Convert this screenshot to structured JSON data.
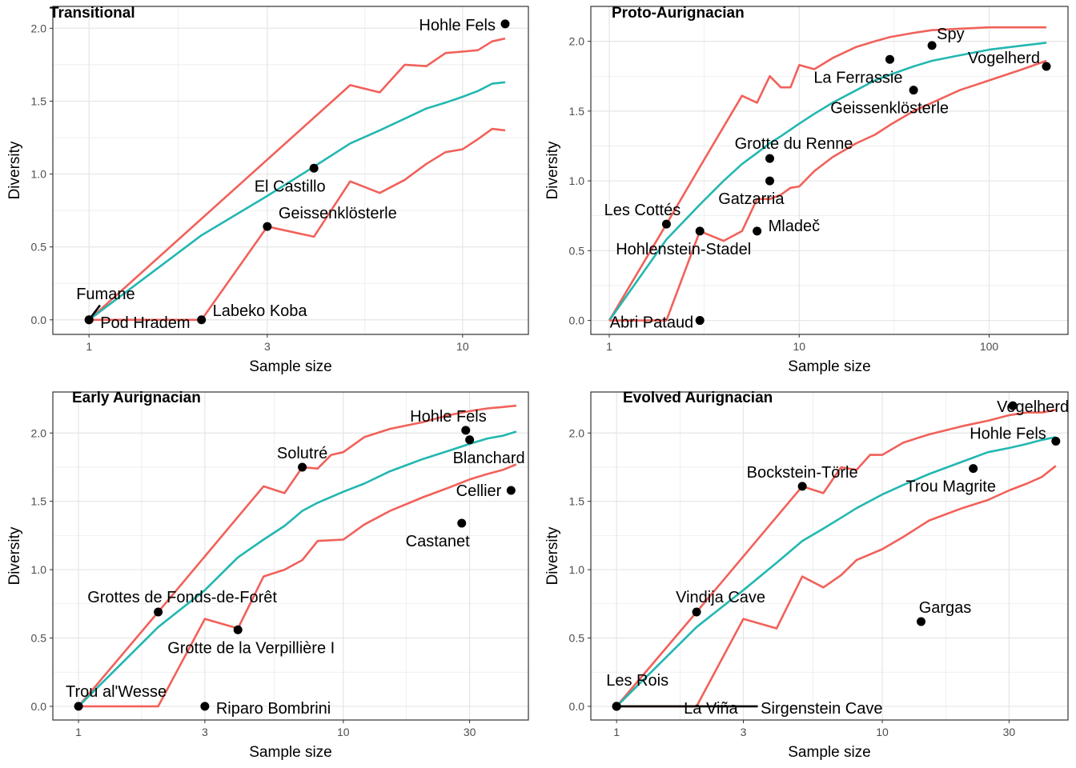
{
  "colors": {
    "bounds": "#F1615A",
    "mean": "#23B7B1",
    "points": "#000000",
    "grid": "#e5e5e5",
    "frame": "#333333"
  },
  "chart_data": [
    {
      "type": "line",
      "title": "Transitional",
      "xlabel": "Sample size",
      "ylabel": "Diversity",
      "x_scale": "log10",
      "xlim": [
        0.8,
        15
      ],
      "ylim": [
        -0.1,
        2.15
      ],
      "xticks": [
        1,
        3,
        10
      ],
      "xtick_labels": [
        "1",
        "3",
        "10"
      ],
      "yticks": [
        0,
        0.5,
        1,
        1.5,
        2
      ],
      "ytick_labels": [
        "0.0",
        "0.5",
        "1.0",
        "1.5",
        "2.0"
      ],
      "grid": true,
      "series": [
        {
          "role": "upper",
          "x": [
            1,
            5,
            6,
            7,
            8,
            9,
            10,
            11,
            12,
            13
          ],
          "y": [
            0,
            1.61,
            1.56,
            1.75,
            1.74,
            1.83,
            1.84,
            1.85,
            1.91,
            1.93
          ]
        },
        {
          "role": "mean",
          "x": [
            1,
            2,
            3,
            4,
            5,
            6,
            7,
            8,
            9,
            10,
            11,
            12,
            13
          ],
          "y": [
            0,
            0.58,
            0.85,
            1.05,
            1.21,
            1.3,
            1.38,
            1.45,
            1.49,
            1.53,
            1.57,
            1.62,
            1.63
          ]
        },
        {
          "role": "lower",
          "x": [
            1,
            2,
            3,
            4,
            5,
            6,
            7,
            8,
            9,
            10,
            11,
            12,
            13
          ],
          "y": [
            0,
            0,
            0.64,
            0.57,
            0.95,
            0.87,
            0.96,
            1.07,
            1.15,
            1.17,
            1.24,
            1.31,
            1.3
          ]
        }
      ],
      "points": [
        {
          "name": "Hohle Fels",
          "x": 13,
          "y": 2.03,
          "label_anchor": "end",
          "label_dx": -12,
          "label_dy": 8
        },
        {
          "name": "El Castillo",
          "x": 4,
          "y": 1.04,
          "label_anchor": "middle",
          "label_dx": -30,
          "label_dy": 29
        },
        {
          "name": "Geissenklösterle",
          "x": 3,
          "y": 0.64,
          "label_anchor": "start",
          "label_dx": 14,
          "label_dy": -10
        },
        {
          "name": "Fumane",
          "x": 1,
          "y": 0,
          "label_anchor": "start",
          "label_dx": -16,
          "label_dy": -26
        },
        {
          "name": "Pod Hradem",
          "x": 1,
          "y": 0,
          "label_anchor": "start",
          "label_dx": 14,
          "label_dy": 10
        },
        {
          "name": "Labeko Koba",
          "x": 2,
          "y": 0,
          "label_anchor": "start",
          "label_dx": 14,
          "label_dy": -5
        }
      ],
      "segments": [
        {
          "x1": 1,
          "y1": 0,
          "x2": 1.07,
          "y2": 0.1
        }
      ]
    },
    {
      "type": "line",
      "title": "Proto-Aurignacian",
      "xlabel": "Sample size",
      "ylabel": "Diversity",
      "x_scale": "log10",
      "xlim": [
        0.8,
        260
      ],
      "ylim": [
        -0.1,
        2.25
      ],
      "xticks": [
        1,
        10,
        100
      ],
      "xtick_labels": [
        "1",
        "10",
        "100"
      ],
      "yticks": [
        0,
        0.5,
        1,
        1.5,
        2
      ],
      "ytick_labels": [
        "0.0",
        "0.5",
        "1.0",
        "1.5",
        "2.0"
      ],
      "grid": true,
      "series": [
        {
          "role": "upper",
          "x": [
            1,
            2,
            3,
            5,
            6,
            7,
            8,
            9,
            10,
            12,
            15,
            20,
            25,
            30,
            40,
            50,
            70,
            100,
            150,
            200
          ],
          "y": [
            0,
            0.69,
            1.1,
            1.61,
            1.56,
            1.75,
            1.67,
            1.67,
            1.83,
            1.8,
            1.88,
            1.96,
            2.0,
            2.03,
            2.06,
            2.08,
            2.09,
            2.1,
            2.1,
            2.1
          ]
        },
        {
          "role": "mean",
          "x": [
            1,
            2,
            3,
            4,
            5,
            6,
            7,
            8,
            10,
            12,
            15,
            20,
            25,
            30,
            40,
            50,
            70,
            100,
            150,
            200
          ],
          "y": [
            0,
            0.58,
            0.83,
            1.0,
            1.12,
            1.2,
            1.27,
            1.32,
            1.41,
            1.48,
            1.56,
            1.65,
            1.72,
            1.76,
            1.82,
            1.86,
            1.9,
            1.94,
            1.97,
            1.99
          ]
        },
        {
          "role": "lower",
          "x": [
            1,
            2,
            3,
            4,
            5,
            6,
            7,
            8,
            9,
            10,
            12,
            15,
            20,
            25,
            30,
            40,
            50,
            70,
            100,
            150,
            200
          ],
          "y": [
            0,
            0,
            0.64,
            0.57,
            0.64,
            0.87,
            0.87,
            0.9,
            0.95,
            0.96,
            1.07,
            1.17,
            1.27,
            1.33,
            1.4,
            1.5,
            1.56,
            1.65,
            1.72,
            1.8,
            1.86
          ]
        }
      ],
      "points": [
        {
          "name": "Spy",
          "x": 50,
          "y": 1.97,
          "label_anchor": "start",
          "label_dx": 6,
          "label_dy": -8
        },
        {
          "name": "Vogelherd",
          "x": 200,
          "y": 1.82,
          "label_anchor": "end",
          "label_dx": -8,
          "label_dy": -4
        },
        {
          "name": "La Ferrassie",
          "x": 30,
          "y": 1.87,
          "label_anchor": "end",
          "label_dx": 16,
          "label_dy": 29
        },
        {
          "name": "Geissenklösterle",
          "x": 40,
          "y": 1.65,
          "label_anchor": "middle",
          "label_dx": -30,
          "label_dy": 29
        },
        {
          "name": "Grotte du Renne",
          "x": 7,
          "y": 1.16,
          "label_anchor": "middle",
          "label_dx": 30,
          "label_dy": -12
        },
        {
          "name": "Gatzarria",
          "x": 7,
          "y": 1.0,
          "label_anchor": "end",
          "label_dx": 18,
          "label_dy": 29
        },
        {
          "name": "Les Cottés",
          "x": 2,
          "y": 0.69,
          "label_anchor": "middle",
          "label_dx": -30,
          "label_dy": -11
        },
        {
          "name": "Mladeč",
          "x": 6,
          "y": 0.64,
          "label_anchor": "start",
          "label_dx": 14,
          "label_dy": 0
        },
        {
          "name": "Hohlenstein-Stadel",
          "x": 3,
          "y": 0.64,
          "label_anchor": "end",
          "label_dx": 64,
          "label_dy": 29
        },
        {
          "name": "Abri Pataud",
          "x": 3,
          "y": 0,
          "label_anchor": "end",
          "label_dx": -8,
          "label_dy": 9
        }
      ],
      "segments": []
    },
    {
      "type": "line",
      "title": "Early Aurignacian",
      "xlabel": "Sample size",
      "ylabel": "Diversity",
      "x_scale": "log10",
      "xlim": [
        0.8,
        50
      ],
      "ylim": [
        -0.1,
        2.3
      ],
      "xticks": [
        1,
        3,
        10,
        30
      ],
      "xtick_labels": [
        "1",
        "3",
        "10",
        "30"
      ],
      "yticks": [
        0,
        0.5,
        1,
        1.5,
        2
      ],
      "ytick_labels": [
        "0.0",
        "0.5",
        "1.0",
        "1.5",
        "2.0"
      ],
      "grid": true,
      "series": [
        {
          "role": "upper",
          "x": [
            1,
            2,
            5,
            6,
            7,
            8,
            9,
            10,
            12,
            15,
            20,
            25,
            30,
            35,
            40,
            45
          ],
          "y": [
            0,
            0.69,
            1.61,
            1.56,
            1.75,
            1.74,
            1.84,
            1.86,
            1.97,
            2.03,
            2.08,
            2.13,
            2.16,
            2.18,
            2.19,
            2.2
          ]
        },
        {
          "role": "mean",
          "x": [
            1,
            2,
            3,
            4,
            5,
            6,
            7,
            8,
            10,
            12,
            15,
            20,
            25,
            30,
            35,
            40,
            45
          ],
          "y": [
            0,
            0.58,
            0.85,
            1.09,
            1.22,
            1.32,
            1.43,
            1.49,
            1.57,
            1.63,
            1.72,
            1.81,
            1.87,
            1.92,
            1.96,
            1.98,
            2.01
          ]
        },
        {
          "role": "lower",
          "x": [
            1,
            2,
            3,
            4,
            5,
            6,
            7,
            8,
            10,
            12,
            15,
            20,
            25,
            30,
            35,
            40,
            45
          ],
          "y": [
            0,
            0,
            0.64,
            0.57,
            0.95,
            1.0,
            1.07,
            1.21,
            1.22,
            1.33,
            1.43,
            1.53,
            1.6,
            1.66,
            1.7,
            1.73,
            1.77
          ]
        }
      ],
      "points": [
        {
          "name": "Hohle Fels",
          "x": 29,
          "y": 2.02,
          "label_anchor": "end",
          "label_dx": 26,
          "label_dy": -11
        },
        {
          "name": "Solutré",
          "x": 7,
          "y": 1.75,
          "label_anchor": "middle",
          "label_dx": 0,
          "label_dy": -11
        },
        {
          "name": "Blanchard",
          "x": 30,
          "y": 1.95,
          "label_anchor": "middle",
          "label_dx": 24,
          "label_dy": 29
        },
        {
          "name": "Cellier",
          "x": 43,
          "y": 1.58,
          "label_anchor": "end",
          "label_dx": -12,
          "label_dy": 7
        },
        {
          "name": "Castanet",
          "x": 28,
          "y": 1.34,
          "label_anchor": "middle",
          "label_dx": -30,
          "label_dy": 29
        },
        {
          "name": "Grottes de Fonds-de-Forêt",
          "x": 2,
          "y": 0.69,
          "label_anchor": "middle",
          "label_dx": 30,
          "label_dy": -12
        },
        {
          "name": "Grotte de la Verpillière I",
          "x": 4,
          "y": 0.56,
          "label_anchor": "start",
          "label_dx": -88,
          "label_dy": 29
        },
        {
          "name": "Trou al'Wesse",
          "x": 1,
          "y": 0,
          "label_anchor": "start",
          "label_dx": -16,
          "label_dy": -12
        },
        {
          "name": "Riparo Bombrini",
          "x": 3,
          "y": 0,
          "label_anchor": "start",
          "label_dx": 14,
          "label_dy": 9
        }
      ],
      "segments": []
    },
    {
      "type": "line",
      "title": "Evolved Aurignacian",
      "xlabel": "Sample size",
      "ylabel": "Diversity",
      "x_scale": "log10",
      "xlim": [
        0.8,
        50
      ],
      "ylim": [
        -0.1,
        2.3
      ],
      "xticks": [
        1,
        3,
        10,
        30
      ],
      "xtick_labels": [
        "1",
        "3",
        "10",
        "30"
      ],
      "yticks": [
        0,
        0.5,
        1,
        1.5,
        2
      ],
      "ytick_labels": [
        "0.0",
        "0.5",
        "1.0",
        "1.5",
        "2.0"
      ],
      "grid": true,
      "series": [
        {
          "role": "upper",
          "x": [
            1,
            2,
            5,
            6,
            7,
            8,
            9,
            10,
            12,
            15,
            20,
            25,
            30,
            35,
            40,
            45
          ],
          "y": [
            0,
            0.69,
            1.61,
            1.56,
            1.75,
            1.73,
            1.84,
            1.84,
            1.93,
            1.99,
            2.05,
            2.09,
            2.13,
            2.15,
            2.15,
            2.17
          ]
        },
        {
          "role": "mean",
          "x": [
            1,
            2,
            3,
            4,
            5,
            6,
            7,
            8,
            10,
            12,
            15,
            20,
            25,
            30,
            35,
            40,
            45
          ],
          "y": [
            0,
            0.58,
            0.85,
            1.05,
            1.21,
            1.3,
            1.38,
            1.45,
            1.55,
            1.62,
            1.7,
            1.79,
            1.86,
            1.89,
            1.92,
            1.95,
            1.97
          ]
        },
        {
          "role": "lower",
          "x": [
            1,
            2,
            3,
            4,
            5,
            6,
            7,
            8,
            10,
            12,
            15,
            20,
            25,
            30,
            35,
            40,
            45
          ],
          "y": [
            0,
            0,
            0.64,
            0.57,
            0.95,
            0.87,
            0.96,
            1.07,
            1.15,
            1.24,
            1.36,
            1.45,
            1.51,
            1.58,
            1.63,
            1.68,
            1.76
          ]
        }
      ],
      "points": [
        {
          "name": "Vogelherd",
          "x": 31,
          "y": 2.2,
          "label_anchor": "start",
          "label_dx": -20,
          "label_dy": 8
        },
        {
          "name": "Hohle Fels",
          "x": 45,
          "y": 1.94,
          "label_anchor": "end",
          "label_dx": -12,
          "label_dy": -3
        },
        {
          "name": "Bockstein-Törle",
          "x": 5,
          "y": 1.61,
          "label_anchor": "middle",
          "label_dx": 0,
          "label_dy": -11
        },
        {
          "name": "Trou Magrite",
          "x": 22,
          "y": 1.74,
          "label_anchor": "middle",
          "label_dx": -28,
          "label_dy": 29
        },
        {
          "name": "Vindija Cave",
          "x": 2,
          "y": 0.69,
          "label_anchor": "middle",
          "label_dx": 30,
          "label_dy": -12
        },
        {
          "name": "Gargas",
          "x": 14,
          "y": 0.62,
          "label_anchor": "middle",
          "label_dx": 30,
          "label_dy": -11
        },
        {
          "name": "Les Rois",
          "x": 1,
          "y": 0,
          "label_anchor": "middle",
          "label_dx": 26,
          "label_dy": -26
        },
        {
          "name": "La Viña",
          "x": 1,
          "y": 0,
          "label_anchor": "start",
          "label_dx": 84,
          "label_dy": 9
        },
        {
          "name": "Sirgenstein Cave",
          "x": 1,
          "y": 0,
          "label_anchor": "start",
          "label_dx": 180,
          "label_dy": 9
        }
      ],
      "segments": [
        {
          "x1": 1,
          "y1": 0,
          "x2": 3.4,
          "y2": 0
        }
      ]
    }
  ]
}
